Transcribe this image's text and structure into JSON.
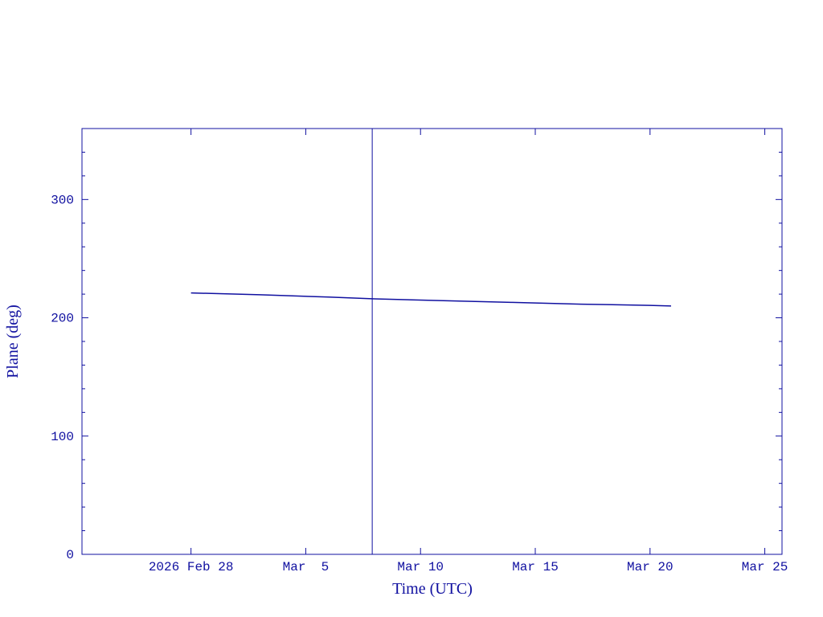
{
  "chart_data": {
    "type": "line",
    "xlabel": "Time (UTC)",
    "ylabel": "Plane (deg)",
    "color": "#1010a0",
    "x": [
      "2026-02-28T00:00",
      "2026-03-03T00:00",
      "2026-03-06T00:00",
      "2026-03-08T00:00",
      "2026-03-11T00:00",
      "2026-03-14T00:00",
      "2026-03-17T00:00",
      "2026-03-20T00:00",
      "2026-03-20T22:00"
    ],
    "series": [
      {
        "values": [
          221,
          219.5,
          217.5,
          216,
          214.5,
          213,
          211.5,
          210.5,
          210
        ]
      }
    ],
    "marker_x": "2026-03-07T21:30",
    "xlim": [
      "2026-02-23T06:00",
      "2026-03-25T18:00"
    ],
    "xticks": [
      {
        "value": "2026-02-28T00:00",
        "label": "2026 Feb 28"
      },
      {
        "value": "2026-03-05T00:00",
        "label": "Mar  5"
      },
      {
        "value": "2026-03-10T00:00",
        "label": "Mar 10"
      },
      {
        "value": "2026-03-15T00:00",
        "label": "Mar 15"
      },
      {
        "value": "2026-03-20T00:00",
        "label": "Mar 20"
      },
      {
        "value": "2026-03-25T00:00",
        "label": "Mar 25"
      }
    ],
    "ylim": [
      0,
      360
    ],
    "yticks": [
      0,
      100,
      200,
      300
    ],
    "yminorticks": [
      20,
      40,
      60,
      80,
      120,
      140,
      160,
      180,
      220,
      240,
      260,
      280,
      320,
      340
    ]
  }
}
